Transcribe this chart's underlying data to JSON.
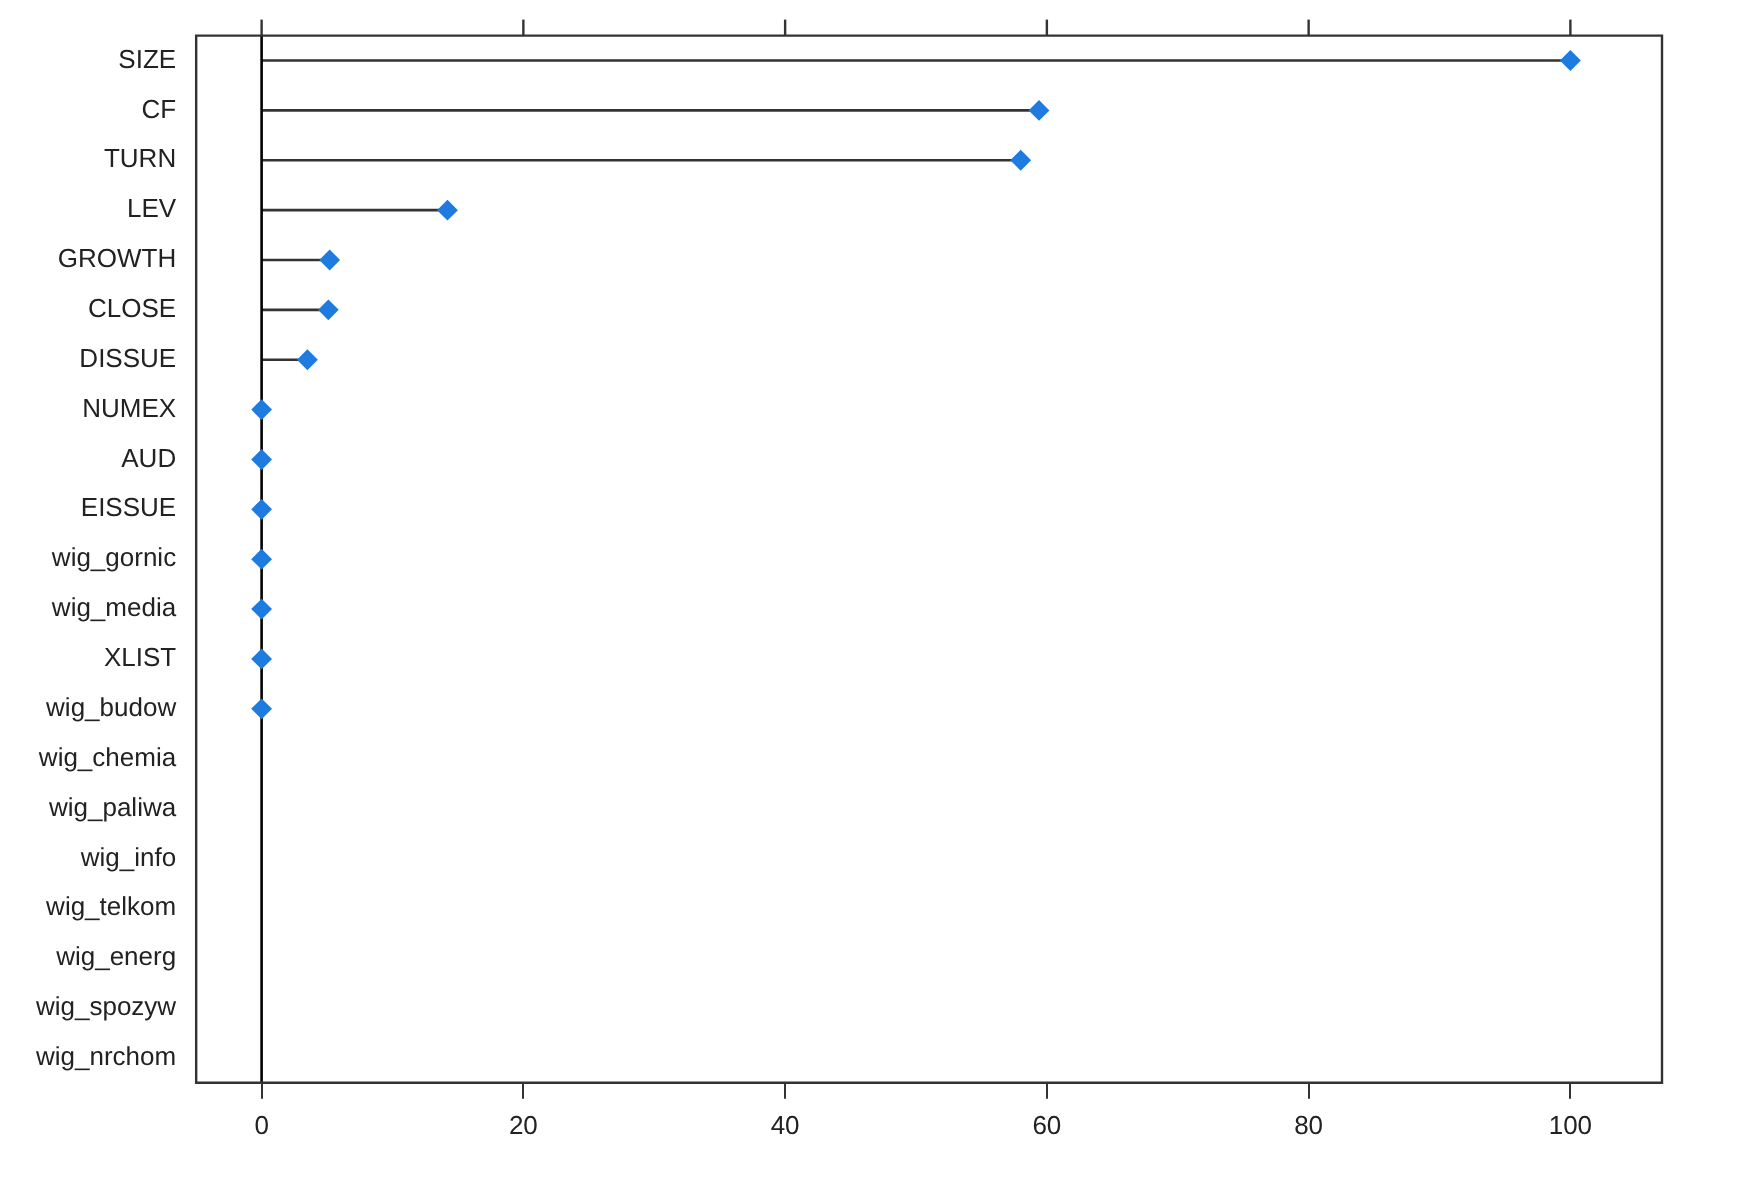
{
  "chart_data": {
    "type": "lollipop",
    "orientation": "horizontal",
    "categories": [
      "SIZE",
      "CF",
      "TURN",
      "LEV",
      "GROWTH",
      "CLOSE",
      "DISSUE",
      "NUMEX",
      "AUD",
      "EISSUE",
      "wig_gornic",
      "wig_media",
      "XLIST",
      "wig_budow",
      "wig_chemia",
      "wig_paliwa",
      "wig_info",
      "wig_telkom",
      "wig_energ",
      "wig_spozyw",
      "wig_nrchom"
    ],
    "values": [
      100,
      59.4,
      58,
      14.2,
      5.2,
      5.1,
      3.5,
      0,
      0,
      0,
      0,
      0,
      0,
      0,
      null,
      null,
      null,
      null,
      null,
      null,
      null
    ],
    "color": "#1e7be0",
    "marker": "diamond",
    "xlim": [
      -5,
      107
    ],
    "xticks": [
      0,
      20,
      40,
      60,
      80,
      100
    ],
    "ref_lines": [
      {
        "axis": "x",
        "value": 0,
        "color": "#000000"
      }
    ],
    "grid": false,
    "legend": false
  }
}
